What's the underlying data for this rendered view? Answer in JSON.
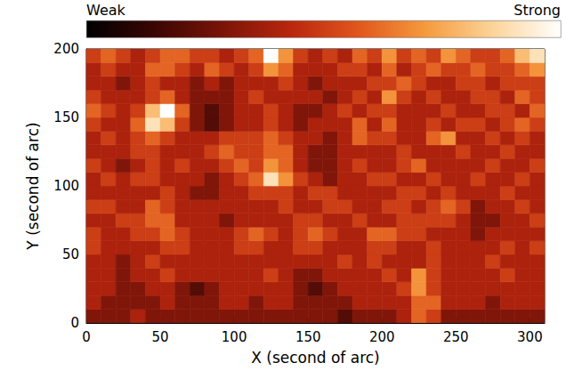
{
  "chart_data": {
    "type": "heatmap",
    "x_label": "X (second of arc)",
    "y_label": "Y (second of arc)",
    "xlim": [
      0,
      310
    ],
    "ylim": [
      0,
      200
    ],
    "xticks": [
      0,
      50,
      100,
      150,
      200,
      250,
      300
    ],
    "yticks": [
      0,
      50,
      100,
      150,
      200
    ],
    "x_edges": [
      0,
      10,
      20,
      30,
      40,
      50,
      60,
      70,
      80,
      90,
      100,
      110,
      120,
      130,
      140,
      150,
      160,
      170,
      180,
      190,
      200,
      210,
      220,
      230,
      240,
      250,
      260,
      270,
      280,
      290,
      300,
      310
    ],
    "y_edges": [
      0,
      10,
      20,
      30,
      40,
      50,
      60,
      70,
      80,
      90,
      100,
      110,
      120,
      130,
      140,
      150,
      160,
      170,
      180,
      190,
      200
    ],
    "cells": [
      [
        3,
        3,
        3,
        4,
        3,
        3,
        3,
        3,
        3,
        3,
        3,
        3,
        3,
        3,
        3,
        3,
        3,
        2,
        3,
        3,
        3,
        4,
        6,
        5,
        3,
        3,
        3,
        3,
        3,
        3,
        3
      ],
      [
        4,
        3,
        3,
        3,
        3,
        4,
        3,
        3,
        3,
        4,
        4,
        3,
        4,
        4,
        3,
        3,
        3,
        3,
        4,
        4,
        4,
        4,
        6,
        6,
        4,
        4,
        4,
        3,
        4,
        4,
        4
      ],
      [
        4,
        4,
        3,
        3,
        4,
        4,
        3,
        2,
        3,
        4,
        4,
        4,
        4,
        4,
        3,
        2,
        3,
        4,
        4,
        4,
        4,
        5,
        7,
        5,
        4,
        4,
        4,
        4,
        4,
        4,
        4
      ],
      [
        4,
        4,
        3,
        4,
        4,
        5,
        4,
        4,
        4,
        4,
        4,
        4,
        5,
        4,
        3,
        3,
        4,
        4,
        4,
        4,
        5,
        4,
        7,
        5,
        4,
        4,
        4,
        4,
        5,
        4,
        4
      ],
      [
        4,
        4,
        3,
        4,
        5,
        4,
        4,
        4,
        4,
        4,
        4,
        4,
        4,
        4,
        4,
        4,
        4,
        5,
        4,
        5,
        4,
        4,
        4,
        5,
        4,
        4,
        4,
        5,
        4,
        4,
        4
      ],
      [
        5,
        4,
        4,
        4,
        4,
        5,
        5,
        4,
        4,
        4,
        5,
        5,
        4,
        4,
        5,
        5,
        4,
        4,
        4,
        5,
        5,
        4,
        4,
        5,
        4,
        4,
        4,
        4,
        5,
        4,
        5
      ],
      [
        5,
        4,
        4,
        5,
        5,
        6,
        5,
        4,
        4,
        4,
        5,
        6,
        5,
        4,
        5,
        6,
        5,
        4,
        4,
        6,
        6,
        5,
        5,
        4,
        4,
        4,
        3,
        4,
        4,
        4,
        4
      ],
      [
        4,
        4,
        5,
        5,
        6,
        6,
        4,
        4,
        4,
        3,
        4,
        4,
        4,
        4,
        5,
        5,
        4,
        4,
        5,
        4,
        4,
        5,
        5,
        5,
        5,
        4,
        3,
        3,
        4,
        4,
        5
      ],
      [
        5,
        5,
        4,
        4,
        6,
        5,
        4,
        4,
        4,
        4,
        4,
        4,
        4,
        5,
        4,
        4,
        5,
        5,
        4,
        4,
        5,
        5,
        4,
        5,
        6,
        5,
        3,
        4,
        4,
        5,
        4
      ],
      [
        4,
        4,
        4,
        4,
        4,
        5,
        4,
        3,
        3,
        4,
        4,
        5,
        5,
        5,
        4,
        5,
        5,
        4,
        4,
        4,
        4,
        5,
        5,
        4,
        5,
        4,
        4,
        4,
        5,
        4,
        4
      ],
      [
        4,
        5,
        4,
        5,
        5,
        4,
        4,
        4,
        3,
        4,
        5,
        6,
        9,
        7,
        5,
        4,
        3,
        4,
        4,
        5,
        5,
        4,
        4,
        5,
        4,
        4,
        5,
        4,
        4,
        5,
        4
      ],
      [
        5,
        4,
        3,
        4,
        5,
        4,
        5,
        4,
        4,
        5,
        6,
        5,
        7,
        6,
        4,
        3,
        3,
        4,
        5,
        4,
        4,
        5,
        6,
        4,
        4,
        4,
        4,
        5,
        4,
        4,
        5
      ],
      [
        4,
        4,
        4,
        5,
        5,
        4,
        4,
        4,
        5,
        6,
        5,
        5,
        6,
        6,
        4,
        3,
        3,
        4,
        4,
        4,
        4,
        5,
        4,
        4,
        4,
        5,
        4,
        4,
        5,
        4,
        4
      ],
      [
        4,
        5,
        4,
        5,
        6,
        5,
        4,
        4,
        4,
        5,
        5,
        5,
        6,
        5,
        4,
        4,
        3,
        4,
        6,
        5,
        5,
        4,
        4,
        6,
        7,
        4,
        4,
        5,
        4,
        5,
        4
      ],
      [
        5,
        4,
        4,
        6,
        9,
        8,
        5,
        3,
        2,
        3,
        4,
        4,
        5,
        4,
        3,
        4,
        4,
        4,
        6,
        4,
        6,
        4,
        4,
        5,
        4,
        5,
        5,
        4,
        5,
        6,
        5
      ],
      [
        6,
        5,
        4,
        5,
        8,
        10,
        6,
        3,
        2,
        3,
        4,
        4,
        5,
        4,
        3,
        3,
        4,
        5,
        4,
        5,
        5,
        4,
        4,
        4,
        5,
        4,
        4,
        5,
        5,
        4,
        6
      ],
      [
        5,
        4,
        4,
        4,
        5,
        6,
        4,
        3,
        3,
        3,
        4,
        5,
        4,
        4,
        4,
        4,
        3,
        4,
        5,
        4,
        7,
        5,
        4,
        5,
        4,
        4,
        5,
        5,
        4,
        6,
        5
      ],
      [
        4,
        4,
        3,
        4,
        5,
        4,
        4,
        3,
        4,
        3,
        4,
        4,
        4,
        5,
        4,
        3,
        4,
        4,
        4,
        5,
        5,
        6,
        5,
        4,
        4,
        5,
        5,
        4,
        5,
        5,
        5
      ],
      [
        4,
        5,
        4,
        4,
        6,
        6,
        5,
        4,
        6,
        5,
        4,
        5,
        7,
        6,
        4,
        4,
        4,
        5,
        5,
        4,
        6,
        4,
        5,
        6,
        5,
        5,
        6,
        5,
        5,
        6,
        7
      ],
      [
        5,
        6,
        5,
        4,
        5,
        6,
        6,
        5,
        5,
        4,
        5,
        6,
        10,
        7,
        5,
        4,
        5,
        4,
        6,
        5,
        7,
        5,
        6,
        5,
        7,
        6,
        5,
        5,
        6,
        8,
        9
      ]
    ],
    "colorbar": {
      "range": [
        0,
        10
      ],
      "labels": [
        "Weak",
        "Strong"
      ]
    }
  }
}
